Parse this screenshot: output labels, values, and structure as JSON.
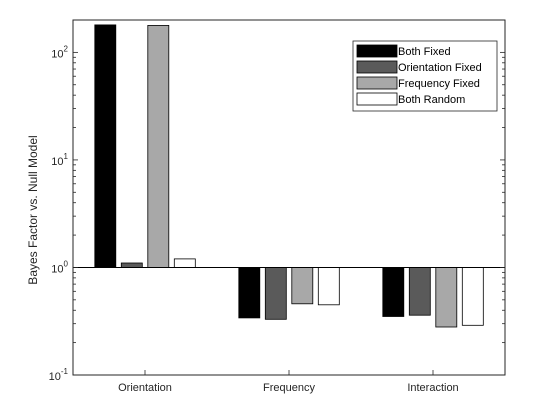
{
  "chart_data": {
    "type": "bar",
    "title": "",
    "xlabel": "",
    "ylabel": "Bayes Factor vs. Null Model",
    "yscale": "log",
    "ylim": [
      0.1,
      200
    ],
    "baseline": 1,
    "yticks": [
      {
        "base": "10",
        "exp": "2",
        "value": 100
      },
      {
        "base": "10",
        "exp": "1",
        "value": 10
      },
      {
        "base": "10",
        "exp": "0",
        "value": 1
      },
      {
        "base": "10",
        "exp": "-1",
        "value": 0.1
      }
    ],
    "categories": [
      "Orientation",
      "Frequency",
      "Interaction"
    ],
    "series": [
      {
        "name": "Both Fixed",
        "color": "#000000",
        "values": [
          180,
          0.34,
          0.35
        ]
      },
      {
        "name": "Orientation Fixed",
        "color": "#5a5a5a",
        "values": [
          1.1,
          0.33,
          0.36
        ]
      },
      {
        "name": "Frequency Fixed",
        "color": "#a8a8a8",
        "values": [
          178,
          0.46,
          0.28
        ]
      },
      {
        "name": "Both Random",
        "color": "#ffffff",
        "values": [
          1.2,
          0.45,
          0.29
        ]
      }
    ],
    "grid": false,
    "legend_position": "top-right"
  }
}
